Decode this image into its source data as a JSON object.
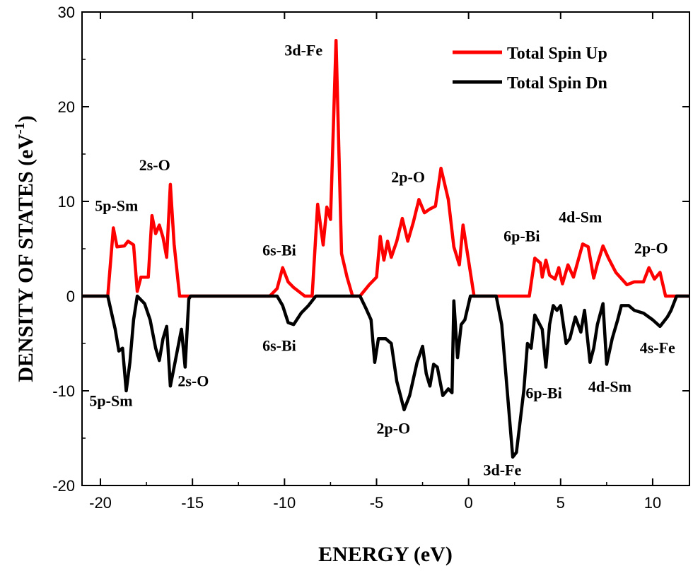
{
  "chart_data": {
    "type": "line",
    "xlabel": "ENERGY (eV)",
    "ylabel": "DENSITY OF STATES (eV",
    "ylabel_sup": "-1",
    "ylabel_close": ")",
    "xlim": [
      -21,
      12
    ],
    "ylim": [
      -20,
      30
    ],
    "xticks": [
      -20,
      -15,
      -10,
      -5,
      0,
      5,
      10
    ],
    "yticks": [
      -20,
      -10,
      0,
      10,
      20,
      30
    ],
    "legend_position": "top-right",
    "series": [
      {
        "name": "Total Spin Up",
        "color": "#ff0000",
        "points": [
          [
            -21,
            0
          ],
          [
            -19.6,
            0
          ],
          [
            -19.3,
            7.2
          ],
          [
            -19.1,
            5.2
          ],
          [
            -18.7,
            5.3
          ],
          [
            -18.5,
            5.8
          ],
          [
            -18.2,
            5.4
          ],
          [
            -18.0,
            0.5
          ],
          [
            -17.8,
            2.0
          ],
          [
            -17.4,
            2.0
          ],
          [
            -17.2,
            8.5
          ],
          [
            -17.0,
            6.6
          ],
          [
            -16.8,
            7.5
          ],
          [
            -16.6,
            6.2
          ],
          [
            -16.4,
            4.1
          ],
          [
            -16.2,
            11.8
          ],
          [
            -16.0,
            5.5
          ],
          [
            -15.7,
            0
          ],
          [
            -10.8,
            0
          ],
          [
            -10.4,
            0.8
          ],
          [
            -10.1,
            3.0
          ],
          [
            -9.8,
            1.5
          ],
          [
            -9.5,
            0.9
          ],
          [
            -8.9,
            0
          ],
          [
            -8.5,
            0
          ],
          [
            -8.2,
            9.7
          ],
          [
            -7.9,
            5.4
          ],
          [
            -7.7,
            9.4
          ],
          [
            -7.5,
            8.1
          ],
          [
            -7.2,
            27.0
          ],
          [
            -6.9,
            4.5
          ],
          [
            -6.6,
            2.0
          ],
          [
            -6.3,
            0
          ],
          [
            -5.9,
            0
          ],
          [
            -5.4,
            1.2
          ],
          [
            -5.0,
            2.0
          ],
          [
            -4.8,
            6.3
          ],
          [
            -4.6,
            3.8
          ],
          [
            -4.4,
            5.8
          ],
          [
            -4.2,
            4.1
          ],
          [
            -3.9,
            5.8
          ],
          [
            -3.6,
            8.2
          ],
          [
            -3.3,
            5.8
          ],
          [
            -3.0,
            7.8
          ],
          [
            -2.7,
            10.2
          ],
          [
            -2.4,
            8.8
          ],
          [
            -2.1,
            9.2
          ],
          [
            -1.8,
            9.5
          ],
          [
            -1.5,
            13.5
          ],
          [
            -1.1,
            10.2
          ],
          [
            -0.8,
            5.2
          ],
          [
            -0.5,
            3.3
          ],
          [
            -0.3,
            7.5
          ],
          [
            -0.1,
            5.0
          ],
          [
            0.3,
            0
          ],
          [
            3.3,
            0
          ],
          [
            3.6,
            4.0
          ],
          [
            3.9,
            3.5
          ],
          [
            4.0,
            2.0
          ],
          [
            4.2,
            3.8
          ],
          [
            4.4,
            2.2
          ],
          [
            4.7,
            1.8
          ],
          [
            4.9,
            3.0
          ],
          [
            5.1,
            1.3
          ],
          [
            5.4,
            3.3
          ],
          [
            5.7,
            2.0
          ],
          [
            6.2,
            5.5
          ],
          [
            6.5,
            5.2
          ],
          [
            6.8,
            1.9
          ],
          [
            7.0,
            3.4
          ],
          [
            7.3,
            5.3
          ],
          [
            7.6,
            4.0
          ],
          [
            8.0,
            2.5
          ],
          [
            8.6,
            1.2
          ],
          [
            9.0,
            1.5
          ],
          [
            9.5,
            1.5
          ],
          [
            9.8,
            3.0
          ],
          [
            10.1,
            1.8
          ],
          [
            10.4,
            2.5
          ],
          [
            10.7,
            0
          ],
          [
            12,
            0
          ]
        ]
      },
      {
        "name": "Total Spin Dn",
        "color": "#000000",
        "points": [
          [
            -21,
            0
          ],
          [
            -19.6,
            0
          ],
          [
            -19.2,
            -3.5
          ],
          [
            -19.0,
            -5.8
          ],
          [
            -18.8,
            -5.5
          ],
          [
            -18.6,
            -10.0
          ],
          [
            -18.4,
            -7.0
          ],
          [
            -18.2,
            -2.5
          ],
          [
            -18.0,
            0
          ],
          [
            -17.6,
            -0.8
          ],
          [
            -17.3,
            -2.5
          ],
          [
            -17.0,
            -5.5
          ],
          [
            -16.8,
            -6.8
          ],
          [
            -16.6,
            -4.5
          ],
          [
            -16.4,
            -3.2
          ],
          [
            -16.2,
            -9.5
          ],
          [
            -16.0,
            -7.5
          ],
          [
            -15.8,
            -5.5
          ],
          [
            -15.6,
            -3.5
          ],
          [
            -15.4,
            -7.5
          ],
          [
            -15.2,
            -0.3
          ],
          [
            -15.1,
            0
          ],
          [
            -10.4,
            0
          ],
          [
            -10.1,
            -1.0
          ],
          [
            -9.8,
            -2.8
          ],
          [
            -9.5,
            -3.0
          ],
          [
            -9.1,
            -1.8
          ],
          [
            -8.7,
            -1.0
          ],
          [
            -8.3,
            0
          ],
          [
            -5.9,
            0
          ],
          [
            -5.6,
            -1.2
          ],
          [
            -5.3,
            -2.5
          ],
          [
            -5.1,
            -7.0
          ],
          [
            -4.9,
            -4.5
          ],
          [
            -4.5,
            -4.5
          ],
          [
            -4.2,
            -5.0
          ],
          [
            -3.9,
            -9.0
          ],
          [
            -3.5,
            -12.0
          ],
          [
            -3.2,
            -10.5
          ],
          [
            -2.8,
            -7.0
          ],
          [
            -2.5,
            -5.3
          ],
          [
            -2.3,
            -8.2
          ],
          [
            -2.1,
            -9.5
          ],
          [
            -1.9,
            -7.2
          ],
          [
            -1.7,
            -7.5
          ],
          [
            -1.4,
            -10.5
          ],
          [
            -1.1,
            -9.8
          ],
          [
            -0.9,
            -10.2
          ],
          [
            -0.8,
            -0.5
          ],
          [
            -0.6,
            -6.5
          ],
          [
            -0.4,
            -3.0
          ],
          [
            -0.2,
            -2.5
          ],
          [
            0.1,
            0
          ],
          [
            1.5,
            0
          ],
          [
            1.8,
            -3.0
          ],
          [
            2.1,
            -10.0
          ],
          [
            2.4,
            -17.0
          ],
          [
            2.6,
            -16.5
          ],
          [
            3.0,
            -10.0
          ],
          [
            3.2,
            -5.0
          ],
          [
            3.4,
            -5.5
          ],
          [
            3.6,
            -2.0
          ],
          [
            4.0,
            -3.5
          ],
          [
            4.2,
            -7.5
          ],
          [
            4.4,
            -3.0
          ],
          [
            4.6,
            -1.0
          ],
          [
            4.8,
            -1.5
          ],
          [
            5.0,
            -1.0
          ],
          [
            5.3,
            -5.0
          ],
          [
            5.5,
            -4.5
          ],
          [
            5.8,
            -2.2
          ],
          [
            6.1,
            -3.8
          ],
          [
            6.3,
            -1.5
          ],
          [
            6.6,
            -7.0
          ],
          [
            6.8,
            -5.5
          ],
          [
            7.0,
            -3.0
          ],
          [
            7.3,
            -0.8
          ],
          [
            7.5,
            -7.2
          ],
          [
            7.8,
            -4.5
          ],
          [
            8.1,
            -2.5
          ],
          [
            8.3,
            -1.0
          ],
          [
            8.7,
            -1.0
          ],
          [
            9.0,
            -1.5
          ],
          [
            9.5,
            -1.8
          ],
          [
            10.0,
            -2.5
          ],
          [
            10.4,
            -3.2
          ],
          [
            10.8,
            -2.2
          ],
          [
            11.0,
            -1.5
          ],
          [
            11.3,
            0
          ],
          [
            12,
            0
          ]
        ]
      }
    ],
    "annotations": [
      {
        "text": "3d-Fe",
        "x": -10.0,
        "y": 25.4
      },
      {
        "text": "2s-O",
        "x": -17.9,
        "y": 13.3
      },
      {
        "text": "5p-Sm",
        "x": -20.3,
        "y": 9.0
      },
      {
        "text": "6s-Bi",
        "x": -11.2,
        "y": 4.3
      },
      {
        "text": "2p-O",
        "x": -4.2,
        "y": 12.0
      },
      {
        "text": "6p-Bi",
        "x": 1.9,
        "y": 5.8
      },
      {
        "text": "4d-Sm",
        "x": 4.9,
        "y": 7.8
      },
      {
        "text": "2p-O",
        "x": 9.0,
        "y": 4.5
      },
      {
        "text": "6s-Bi",
        "x": -11.2,
        "y": -5.8
      },
      {
        "text": "5p-Sm",
        "x": -20.6,
        "y": -11.6
      },
      {
        "text": "2s-O",
        "x": -15.8,
        "y": -9.5
      },
      {
        "text": "2p-O",
        "x": -5.0,
        "y": -14.5
      },
      {
        "text": "3d-Fe",
        "x": 0.8,
        "y": -18.9
      },
      {
        "text": "6p-Bi",
        "x": 3.1,
        "y": -10.8
      },
      {
        "text": "4d-Sm",
        "x": 6.5,
        "y": -10.1
      },
      {
        "text": "4s-Fe",
        "x": 9.3,
        "y": -6.0
      }
    ]
  }
}
